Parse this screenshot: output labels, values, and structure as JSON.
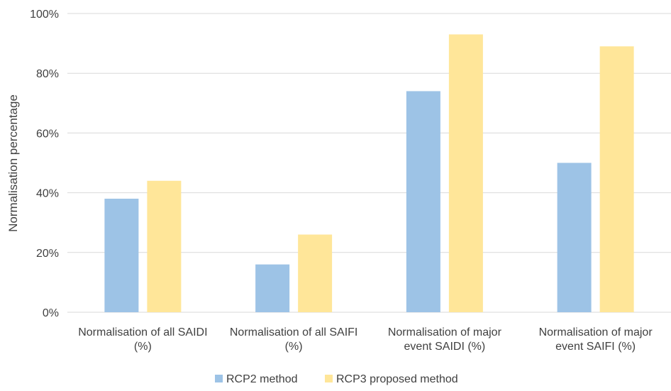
{
  "chart_data": {
    "type": "bar",
    "title": "",
    "xlabel": "",
    "ylabel": "Normalisation percentage",
    "ylim": [
      0,
      100
    ],
    "yticks": [
      0,
      20,
      40,
      60,
      80,
      100
    ],
    "ytick_labels": [
      "0%",
      "20%",
      "40%",
      "60%",
      "80%",
      "100%"
    ],
    "grid": true,
    "legend_position": "bottom",
    "categories": [
      [
        "Normalisation of all SAIDI",
        "(%)"
      ],
      [
        "Normalisation of all SAIFI",
        "(%)"
      ],
      [
        "Normalisation of major",
        "event SAIDI (%)"
      ],
      [
        "Normalisation of major",
        "event SAIFI (%)"
      ]
    ],
    "series": [
      {
        "name": "RCP2 method",
        "color": "#9dc3e6",
        "values": [
          38,
          16,
          74,
          50
        ]
      },
      {
        "name": "RCP3 proposed method",
        "color": "#ffe699",
        "values": [
          44,
          26,
          93,
          89
        ]
      }
    ]
  }
}
